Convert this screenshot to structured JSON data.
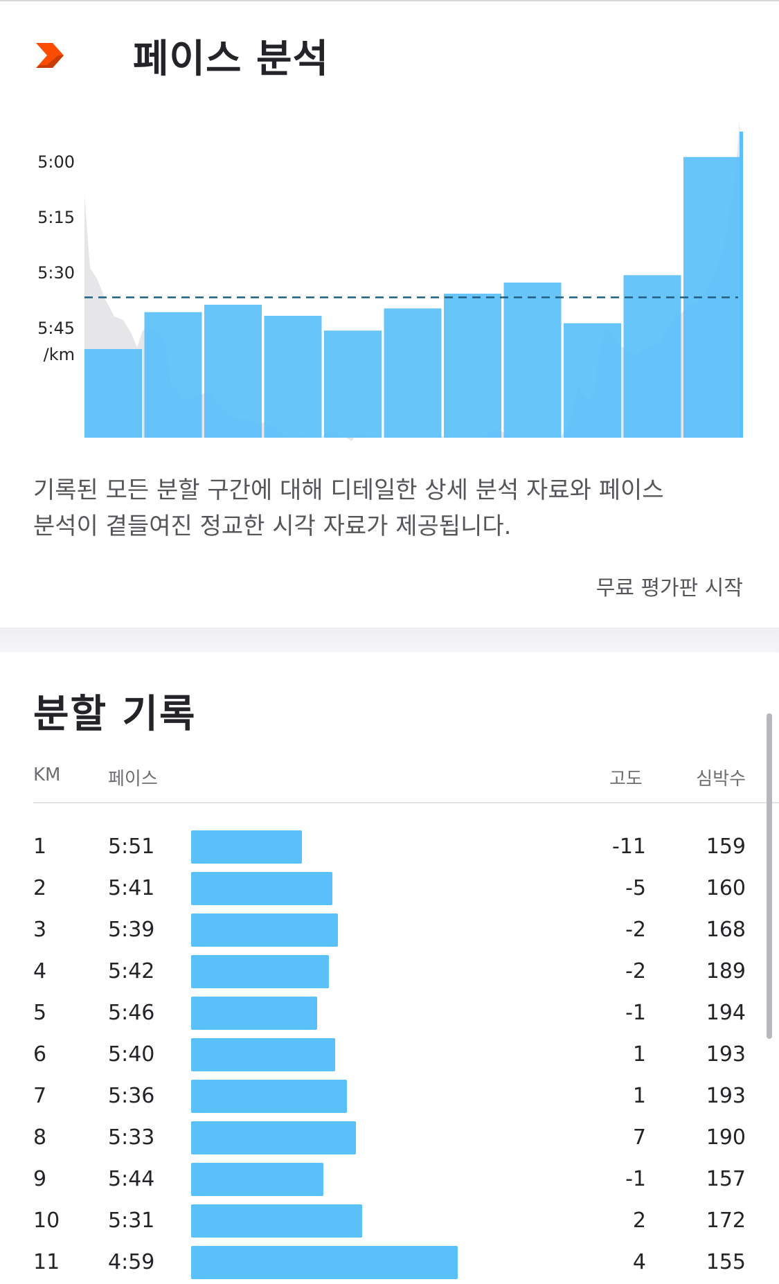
{
  "pace_analysis": {
    "title": "페이스 분석",
    "description_line1": "기록된 모든 분할 구간에 대해 디테일한 상세 분석 자료와 페이스",
    "description_line2": "분석이 곁들여진 정교한 시각 자료가 제공됩니다.",
    "trial_label": "무료 평가판 시작",
    "logo_icon": "chevron-logo-icon",
    "accent_color": "#fc4c02"
  },
  "chart_data": {
    "type": "bar",
    "y_tick_labels": [
      "5:00",
      "5:15",
      "5:30",
      "5:45"
    ],
    "y_unit_label": "/km",
    "y_inverted": true,
    "ylim_sec_per_km": [
      285,
      360
    ],
    "categories": [
      "1",
      "2",
      "3",
      "4",
      "5",
      "6",
      "7",
      "8",
      "9",
      "10",
      "11"
    ],
    "values_sec_per_km": [
      351,
      341,
      339,
      342,
      346,
      340,
      336,
      333,
      344,
      331,
      299
    ],
    "average_pace_sec_per_km": 337,
    "bar_color": "#5ac0fa",
    "background_trace_color": "#e6e6e9",
    "average_line_color": "#1f5f82",
    "grid": false
  },
  "splits": {
    "title": "분할 기록",
    "headers": {
      "km": "KM",
      "pace": "페이스",
      "elevation": "고도",
      "heart_rate": "심박수"
    },
    "rows": [
      {
        "km": "1",
        "pace": "5:51",
        "pace_sec": 351,
        "elevation": "-11",
        "heart_rate": "159"
      },
      {
        "km": "2",
        "pace": "5:41",
        "pace_sec": 341,
        "elevation": "-5",
        "heart_rate": "160"
      },
      {
        "km": "3",
        "pace": "5:39",
        "pace_sec": 339,
        "elevation": "-2",
        "heart_rate": "168"
      },
      {
        "km": "4",
        "pace": "5:42",
        "pace_sec": 342,
        "elevation": "-2",
        "heart_rate": "189"
      },
      {
        "km": "5",
        "pace": "5:46",
        "pace_sec": 346,
        "elevation": "-1",
        "heart_rate": "194"
      },
      {
        "km": "6",
        "pace": "5:40",
        "pace_sec": 340,
        "elevation": "1",
        "heart_rate": "193"
      },
      {
        "km": "7",
        "pace": "5:36",
        "pace_sec": 336,
        "elevation": "1",
        "heart_rate": "193"
      },
      {
        "km": "8",
        "pace": "5:33",
        "pace_sec": 333,
        "elevation": "7",
        "heart_rate": "190"
      },
      {
        "km": "9",
        "pace": "5:44",
        "pace_sec": 344,
        "elevation": "-1",
        "heart_rate": "157"
      },
      {
        "km": "10",
        "pace": "5:31",
        "pace_sec": 331,
        "elevation": "2",
        "heart_rate": "172"
      },
      {
        "km": "11",
        "pace": "4:59",
        "pace_sec": 299,
        "elevation": "4",
        "heart_rate": "155"
      }
    ]
  }
}
